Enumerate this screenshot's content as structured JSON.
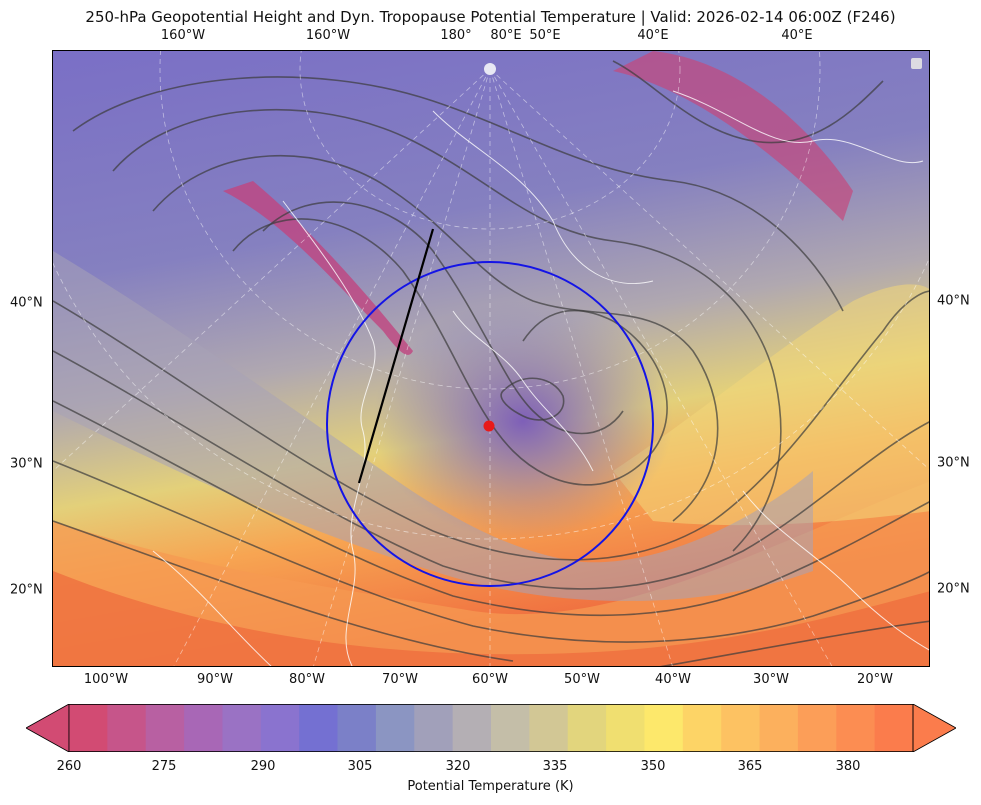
{
  "title": "250-hPa Geopotential Height and Dyn. Tropopause Potential Temperature   |  Valid: 2026-02-14 06:00Z (F246)",
  "map": {
    "top_labels": [
      "160°W",
      "160°W",
      "180°",
      "80°E",
      "50°E",
      "40°E",
      "40°E"
    ],
    "bottom_labels": [
      "100°W",
      "90°W",
      "80°W",
      "70°W",
      "60°W",
      "50°W",
      "40°W",
      "30°W",
      "20°W"
    ],
    "left_labels": [
      "40°N",
      "30°N",
      "20°N"
    ],
    "right_labels": [
      "40°N",
      "30°N",
      "20°N"
    ],
    "field": "Dyn. Tropopause Potential Temperature",
    "contours": "250-hPa Geopotential Height",
    "marker_color": "#e81a1a",
    "circle_color": "#1414e6",
    "line_color": "#000000"
  },
  "colorbar": {
    "label": "Potential Temperature (K)",
    "ticks": [
      "260",
      "275",
      "290",
      "305",
      "320",
      "335",
      "350",
      "365",
      "380"
    ],
    "colors": [
      "#d24b73",
      "#c6558a",
      "#b860a2",
      "#a867b6",
      "#9a72c4",
      "#8a73cf",
      "#7470d2",
      "#7b80c8",
      "#8b95c2",
      "#a1a0ba",
      "#b4afb4",
      "#c4bea8",
      "#d2c795",
      "#e2d57d",
      "#f0df70",
      "#fde86b",
      "#fdd466",
      "#fdc262",
      "#fcb05d",
      "#fc9e58",
      "#fc8d52",
      "#fb7c4c"
    ]
  }
}
